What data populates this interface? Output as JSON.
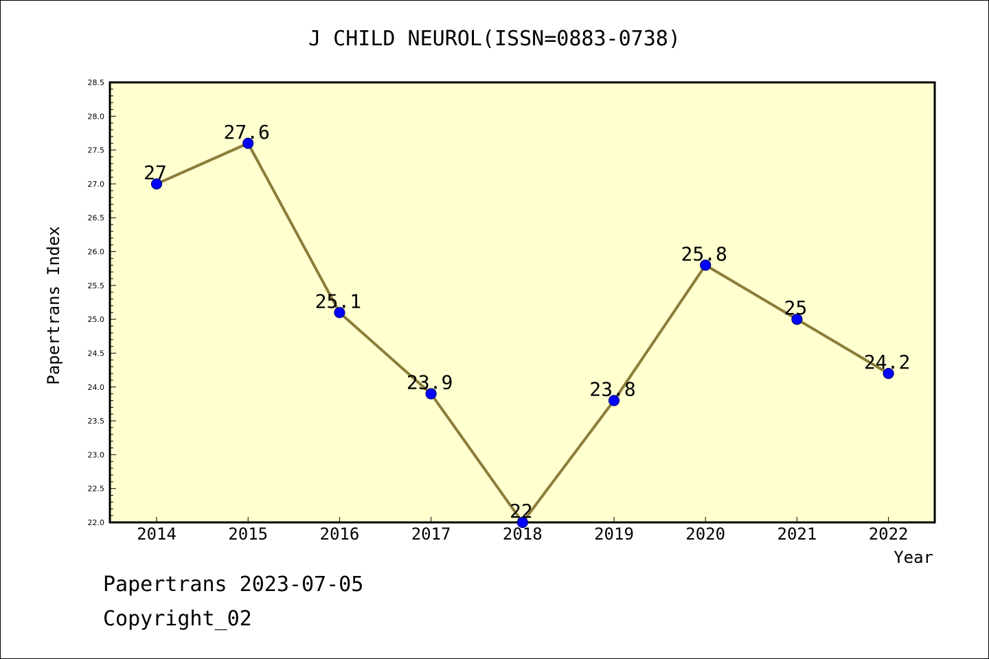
{
  "chart_data": {
    "type": "line",
    "title": "J CHILD NEUROL(ISSN=0883-0738)",
    "xlabel": "Year",
    "ylabel": "Papertrans Index",
    "categories": [
      "2014",
      "2015",
      "2016",
      "2017",
      "2018",
      "2019",
      "2020",
      "2021",
      "2022"
    ],
    "series": [
      {
        "values": [
          27,
          27.6,
          25.1,
          23.9,
          22,
          23.8,
          25.8,
          25,
          24.2
        ]
      }
    ],
    "data_labels": [
      "27",
      "27.6",
      "25.1",
      "23.9",
      "22",
      "23.8",
      "25.8",
      "25",
      "24.2"
    ],
    "ylim": [
      22.0,
      28.5
    ],
    "y_ticks": [
      "22.0",
      "22.5",
      "23.0",
      "23.5",
      "24.0",
      "24.5",
      "25.0",
      "25.5",
      "26.0",
      "26.5",
      "27.0",
      "27.5",
      "28.0",
      "28.5"
    ],
    "grid": false,
    "legend": "none",
    "colors": {
      "plot_background": "#ffffd0",
      "line": "#8b7d3a",
      "marker_fill": "#0000ff",
      "marker_edge": "#000080"
    }
  },
  "footer": {
    "date_text": "Papertrans 2023-07-05",
    "copyright_text": "Copyright_02"
  }
}
